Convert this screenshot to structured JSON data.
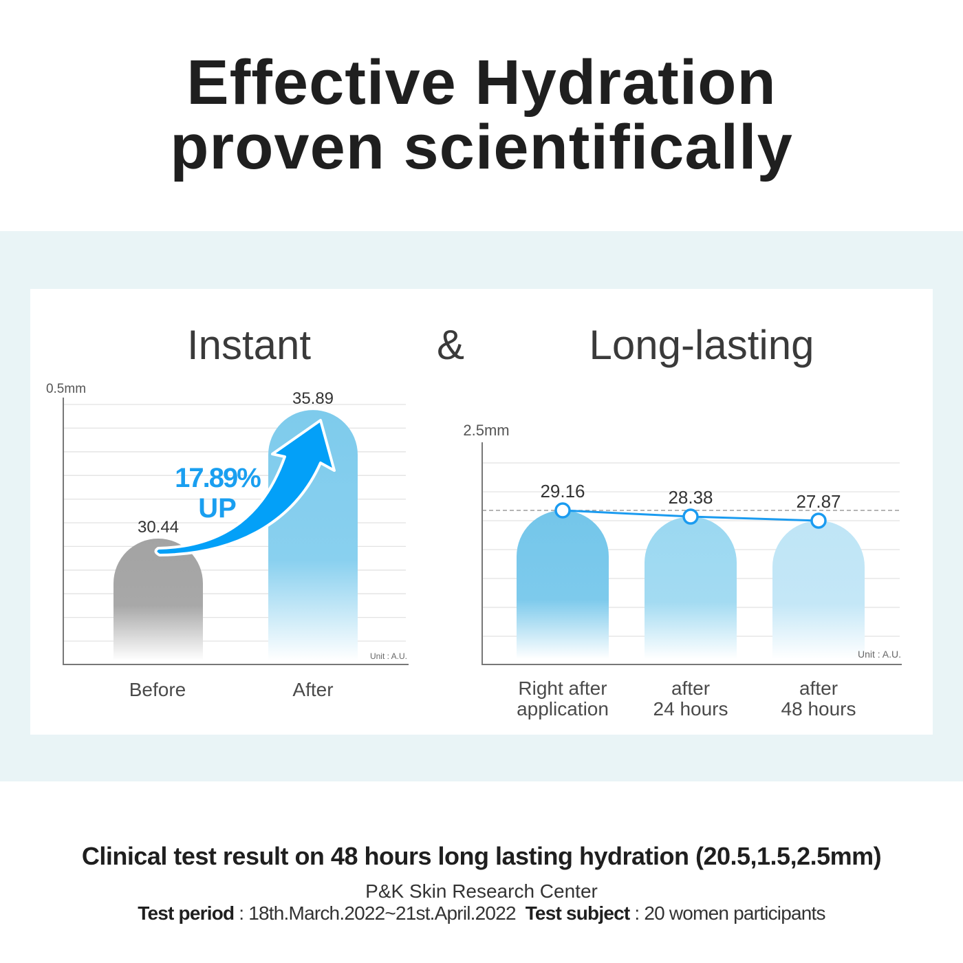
{
  "title": {
    "line1": "Effective Hydration",
    "line2": "proven scientifically"
  },
  "headings": {
    "left": "Instant",
    "amp": "&",
    "right": "Long-lasting"
  },
  "colors": {
    "accent": "#1a9ff0",
    "before_bar": "#a6a6a6",
    "after_bar": "#7ecbec",
    "band": "#e9f4f6",
    "line": "#1a9bf0"
  },
  "chart_data": [
    {
      "type": "bar",
      "ylabel": "0.5mm",
      "unit": "Unit : A.U.",
      "categories": [
        "Before",
        "After"
      ],
      "values": [
        30.44,
        35.89
      ],
      "value_labels": [
        "30.44",
        "35.89"
      ],
      "annotation": {
        "percent": "17.89%",
        "word": "UP"
      },
      "grid": true
    },
    {
      "type": "bar",
      "overlay": "line",
      "ylabel": "2.5mm",
      "unit": "Unit : A.U.",
      "categories": [
        [
          "Right after",
          "application"
        ],
        [
          "after",
          "24 hours"
        ],
        [
          "after",
          "48 hours"
        ]
      ],
      "values": [
        29.16,
        28.38,
        27.87
      ],
      "value_labels": [
        "29.16",
        "28.38",
        "27.87"
      ],
      "grid": true
    }
  ],
  "footer": {
    "headline": "Clinical test result on 48 hours long lasting hydration (20.5,1.5,2.5mm)",
    "center": "P&K Skin Research Center",
    "period_label": "Test period",
    "period_value": " : 18th.March.2022~21st.April.2022  ",
    "subject_label": "Test subject",
    "subject_value": " : 20 women participants"
  }
}
